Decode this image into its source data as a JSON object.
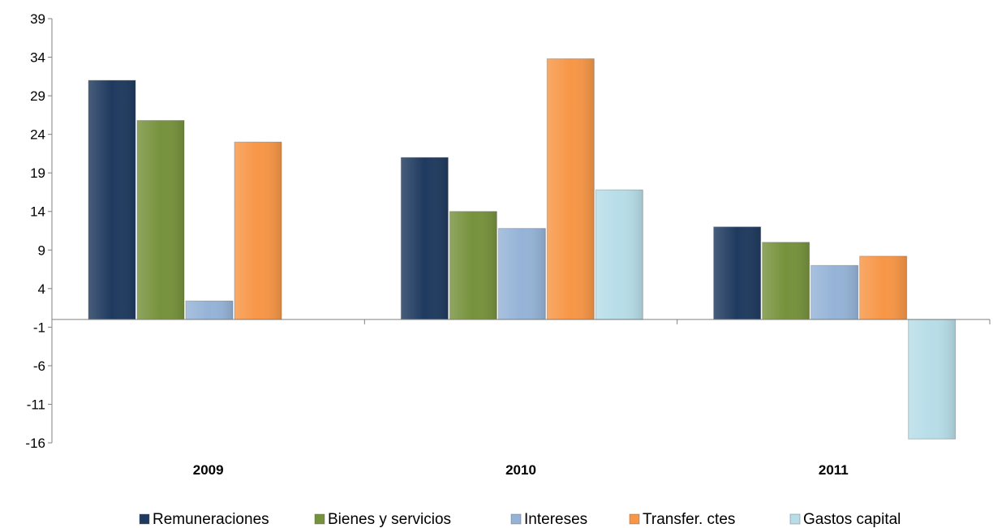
{
  "chart_data": {
    "type": "bar",
    "categories": [
      "2009",
      "2010",
      "2011"
    ],
    "series": [
      {
        "name": "Remuneraciones",
        "values": [
          31,
          21,
          12
        ],
        "color": "#1F3A5F"
      },
      {
        "name": "Bienes y servicios",
        "values": [
          25.8,
          14,
          10
        ],
        "color": "#76923C"
      },
      {
        "name": "Intereses",
        "values": [
          2.4,
          11.8,
          7
        ],
        "color": "#95B3D7"
      },
      {
        "name": "Transfer. ctes",
        "values": [
          23,
          33.8,
          8.2
        ],
        "color": "#F79646"
      },
      {
        "name": "Gastos capital",
        "values": [
          null,
          16.8,
          -15.5
        ],
        "color": "#B7DDE8"
      }
    ],
    "yticks": [
      "39",
      "34",
      "29",
      "24",
      "19",
      "14",
      "9",
      "4",
      "-1",
      "-6",
      "-11",
      "-16"
    ],
    "ylim": [
      -16,
      39
    ],
    "grid": false,
    "legend_position": "bottom"
  }
}
